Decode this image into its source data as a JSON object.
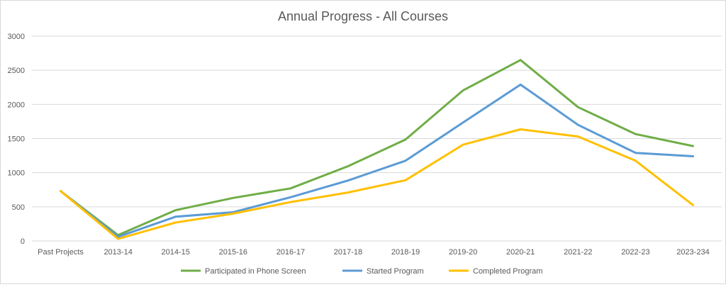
{
  "chart_data": {
    "type": "line",
    "title": "Annual Progress - All Courses",
    "xlabel": "",
    "ylabel": "",
    "ylim": [
      0,
      3000
    ],
    "yticks": [
      0,
      500,
      1000,
      1500,
      2000,
      2500,
      3000
    ],
    "grid": true,
    "legend_position": "bottom",
    "categories": [
      "Past Projects",
      "2013-14",
      "2014-15",
      "2015-16",
      "2016-17",
      "2017-18",
      "2018-19",
      "2019-20",
      "2020-21",
      "2021-22",
      "2022-23",
      "2023-234"
    ],
    "series": [
      {
        "name": "Participated in Phone Screen",
        "color": "#70AD47",
        "values": [
          730,
          85,
          450,
          630,
          770,
          1095,
          1485,
          2205,
          2650,
          1960,
          1565,
          1390
        ]
      },
      {
        "name": "Started Program",
        "color": "#5B9BD5",
        "values": [
          730,
          60,
          355,
          420,
          640,
          885,
          1175,
          1735,
          2290,
          1700,
          1290,
          1240
        ]
      },
      {
        "name": "Completed Program",
        "color": "#FFC000",
        "values": [
          730,
          30,
          270,
          400,
          570,
          710,
          890,
          1410,
          1635,
          1530,
          1175,
          525
        ]
      }
    ]
  }
}
